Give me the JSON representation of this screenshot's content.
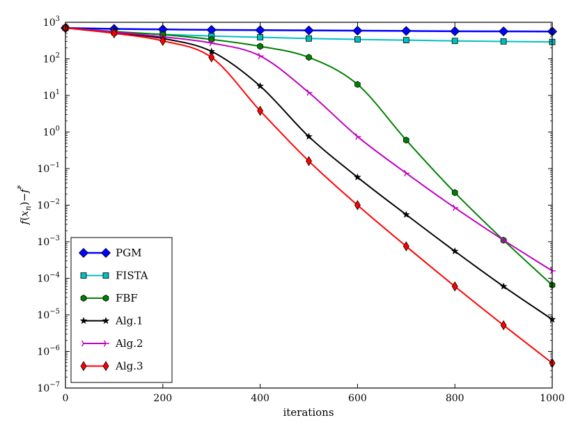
{
  "chart_data": {
    "type": "line",
    "title": "",
    "xlabel": "iterations",
    "ylabel": "f(x_n) − f*",
    "yscale": "log",
    "xlim": [
      0,
      1000
    ],
    "ylim_exp": [
      -7,
      3
    ],
    "grid": false,
    "legend_position": "lower-left",
    "x_ticks": [
      0,
      200,
      400,
      600,
      800,
      1000
    ],
    "x_tick_labels": [
      "0",
      "200",
      "400",
      "600",
      "800",
      "1000"
    ],
    "y_tick_exps": [
      -7,
      -6,
      -5,
      -4,
      -3,
      -2,
      -1,
      0,
      1,
      2,
      3
    ],
    "y_tick_labels": [
      "10",
      "10",
      "10",
      "10",
      "10",
      "10",
      "10",
      "10",
      "10",
      "10",
      "10"
    ],
    "y_tick_sups": [
      "−7",
      "−6",
      "−5",
      "−4",
      "−3",
      "−2",
      "−1",
      "0",
      "1",
      "2",
      "3"
    ],
    "ylabel_parts": {
      "f": "f",
      "open": "(",
      "x": "x",
      "n": "n",
      "close": ")",
      "minus": "−",
      "f2": "f",
      "star": "*"
    },
    "series": [
      {
        "name": "PGM",
        "color": "#0000ff",
        "marker": "diamond",
        "stroke_width": 2.5,
        "x": [
          0,
          100,
          200,
          300,
          400,
          500,
          600,
          700,
          800,
          900,
          1000
        ],
        "y": [
          700,
          660,
          640,
          620,
          610,
          600,
          590,
          580,
          570,
          565,
          560
        ]
      },
      {
        "name": "FISTA",
        "color": "#00bfbf",
        "marker": "square",
        "stroke_width": 2,
        "x": [
          0,
          100,
          200,
          300,
          400,
          500,
          600,
          700,
          800,
          900,
          1000
        ],
        "y": [
          700,
          540,
          470,
          420,
          390,
          360,
          340,
          325,
          310,
          300,
          290
        ]
      },
      {
        "name": "FBF",
        "color": "#008000",
        "marker": "hexagon",
        "stroke_width": 2,
        "x": [
          0,
          100,
          200,
          300,
          400,
          500,
          600,
          700,
          800,
          900,
          1000
        ],
        "y": [
          700,
          560,
          460,
          340,
          220,
          110,
          20,
          0.6,
          0.022,
          0.0011,
          6.5e-05
        ]
      },
      {
        "name": "Alg.1",
        "color": "#000000",
        "marker": "star",
        "stroke_width": 2,
        "x": [
          0,
          100,
          200,
          300,
          400,
          500,
          600,
          700,
          800,
          900,
          1000
        ],
        "y": [
          700,
          520,
          360,
          160,
          18,
          0.75,
          0.058,
          0.0055,
          0.00055,
          6e-05,
          7.5e-06
        ]
      },
      {
        "name": "Alg.2",
        "color": "#bf00bf",
        "marker": "tri_right",
        "stroke_width": 2,
        "x": [
          0,
          100,
          200,
          300,
          400,
          500,
          600,
          700,
          800,
          900,
          1000
        ],
        "y": [
          700,
          540,
          400,
          270,
          120,
          12,
          0.75,
          0.075,
          0.0085,
          0.0011,
          0.00016
        ]
      },
      {
        "name": "Alg.3",
        "color": "#ff0000",
        "marker": "thin_diamond",
        "stroke_width": 2,
        "x": [
          0,
          100,
          200,
          300,
          400,
          500,
          600,
          700,
          800,
          900,
          1000
        ],
        "y": [
          700,
          500,
          310,
          110,
          3.8,
          0.16,
          0.01,
          0.00075,
          6e-05,
          5.2e-06,
          4.8e-07
        ]
      }
    ]
  }
}
